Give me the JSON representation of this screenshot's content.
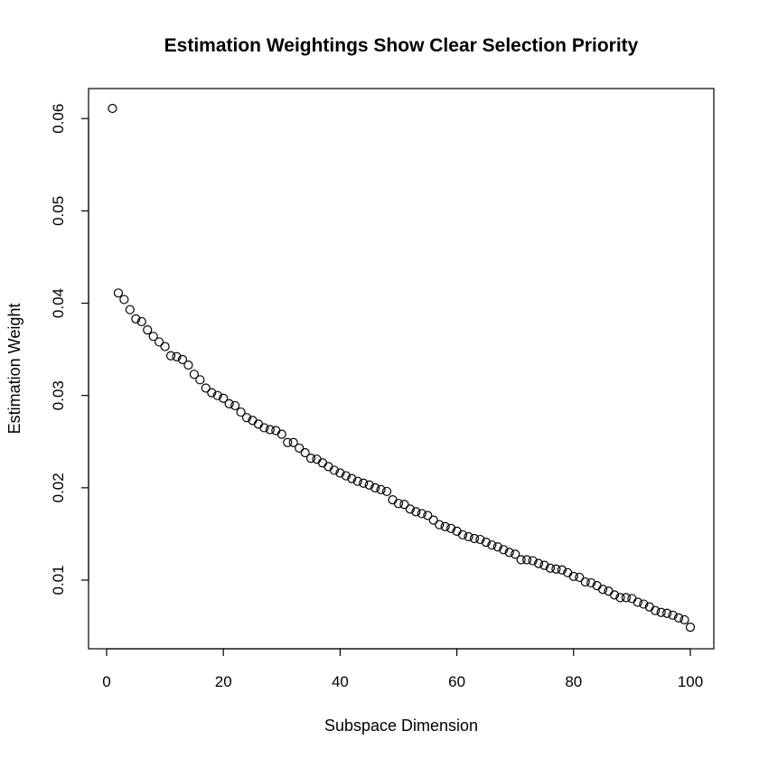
{
  "chart_data": {
    "type": "scatter",
    "title": "Estimation Weightings Show Clear Selection Priority",
    "xlabel": "Subspace Dimension",
    "ylabel": "Estimation Weight",
    "xlim": [
      0,
      100
    ],
    "ylim": [
      0.005,
      0.061
    ],
    "x_ticks": [
      0,
      20,
      40,
      60,
      80,
      100
    ],
    "y_ticks": [
      0.01,
      0.02,
      0.03,
      0.04,
      0.05,
      0.06
    ],
    "grid": false,
    "legend": "none",
    "marker": "open-circle",
    "x": [
      1,
      2,
      3,
      4,
      5,
      6,
      7,
      8,
      9,
      10,
      11,
      12,
      13,
      14,
      15,
      16,
      17,
      18,
      19,
      20,
      21,
      22,
      23,
      24,
      25,
      26,
      27,
      28,
      29,
      30,
      31,
      32,
      33,
      34,
      35,
      36,
      37,
      38,
      39,
      40,
      41,
      42,
      43,
      44,
      45,
      46,
      47,
      48,
      49,
      50,
      51,
      52,
      53,
      54,
      55,
      56,
      57,
      58,
      59,
      60,
      61,
      62,
      63,
      64,
      65,
      66,
      67,
      68,
      69,
      70,
      71,
      72,
      73,
      74,
      75,
      76,
      77,
      78,
      79,
      80,
      81,
      82,
      83,
      84,
      85,
      86,
      87,
      88,
      89,
      90,
      91,
      92,
      93,
      94,
      95,
      96,
      97,
      98,
      99,
      100
    ],
    "y": [
      0.0611,
      0.0411,
      0.0404,
      0.0393,
      0.0383,
      0.038,
      0.0371,
      0.0364,
      0.0358,
      0.0353,
      0.0343,
      0.0342,
      0.0339,
      0.0333,
      0.0323,
      0.0317,
      0.0308,
      0.0303,
      0.03,
      0.0297,
      0.0291,
      0.0289,
      0.0282,
      0.0276,
      0.0273,
      0.0269,
      0.0265,
      0.0263,
      0.0262,
      0.0258,
      0.0249,
      0.0249,
      0.0243,
      0.0238,
      0.0232,
      0.0231,
      0.0227,
      0.0223,
      0.0219,
      0.0216,
      0.0213,
      0.021,
      0.0207,
      0.0205,
      0.0203,
      0.02,
      0.0198,
      0.0196,
      0.0187,
      0.0183,
      0.0182,
      0.0177,
      0.0174,
      0.0172,
      0.017,
      0.0165,
      0.016,
      0.0158,
      0.0156,
      0.0153,
      0.0149,
      0.0147,
      0.0145,
      0.0144,
      0.0141,
      0.0138,
      0.0136,
      0.0133,
      0.013,
      0.0128,
      0.0122,
      0.0122,
      0.0121,
      0.0118,
      0.0116,
      0.0113,
      0.0112,
      0.0111,
      0.0108,
      0.0104,
      0.0103,
      0.0098,
      0.0097,
      0.0094,
      0.009,
      0.0088,
      0.0084,
      0.0081,
      0.0081,
      0.008,
      0.0076,
      0.0074,
      0.0071,
      0.0067,
      0.0065,
      0.0064,
      0.0062,
      0.0059,
      0.0057,
      0.0049
    ]
  }
}
